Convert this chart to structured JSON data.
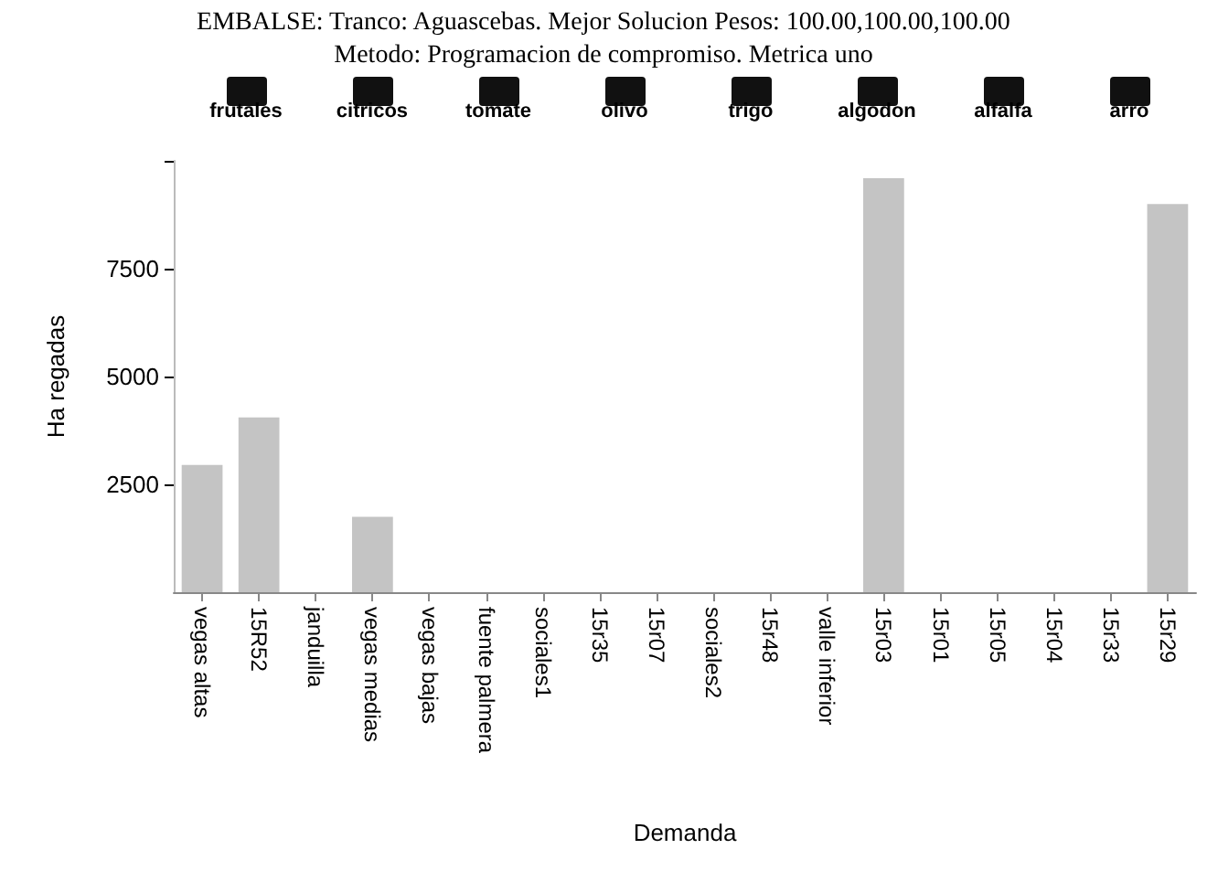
{
  "chart_data": {
    "type": "bar",
    "title": "EMBALSE: Tranco: Aguascebas. Mejor Solucion Pesos: 100.00,100.00,100.00",
    "subtitle": "Metodo: Programacion de compromiso. Metrica uno",
    "xlabel": "Demanda",
    "ylabel": "Ha regadas",
    "categories": [
      "vegas altas",
      "15R52",
      "janduilla",
      "vegas medias",
      "vegas bajas",
      "fuente palmera",
      "sociales1",
      "15r35",
      "15r07",
      "sociales2",
      "15r48",
      "valle inferior",
      "15r03",
      "15r01",
      "15r05",
      "15r04",
      "15r33",
      "15r29"
    ],
    "values": [
      2950,
      4050,
      0,
      1750,
      0,
      0,
      0,
      0,
      0,
      0,
      0,
      0,
      9600,
      0,
      0,
      0,
      0,
      9000
    ],
    "color": "#c4c4c4",
    "annotations": [
      "frutales",
      "citricos",
      "tomate",
      "olivo",
      "trigo",
      "algodon",
      "alfalfa",
      "arro"
    ],
    "ylim": [
      0,
      10000
    ],
    "yticks": [
      2500,
      5000,
      7500,
      {
        "value": 10000,
        "label": null
      }
    ],
    "grid": false
  }
}
